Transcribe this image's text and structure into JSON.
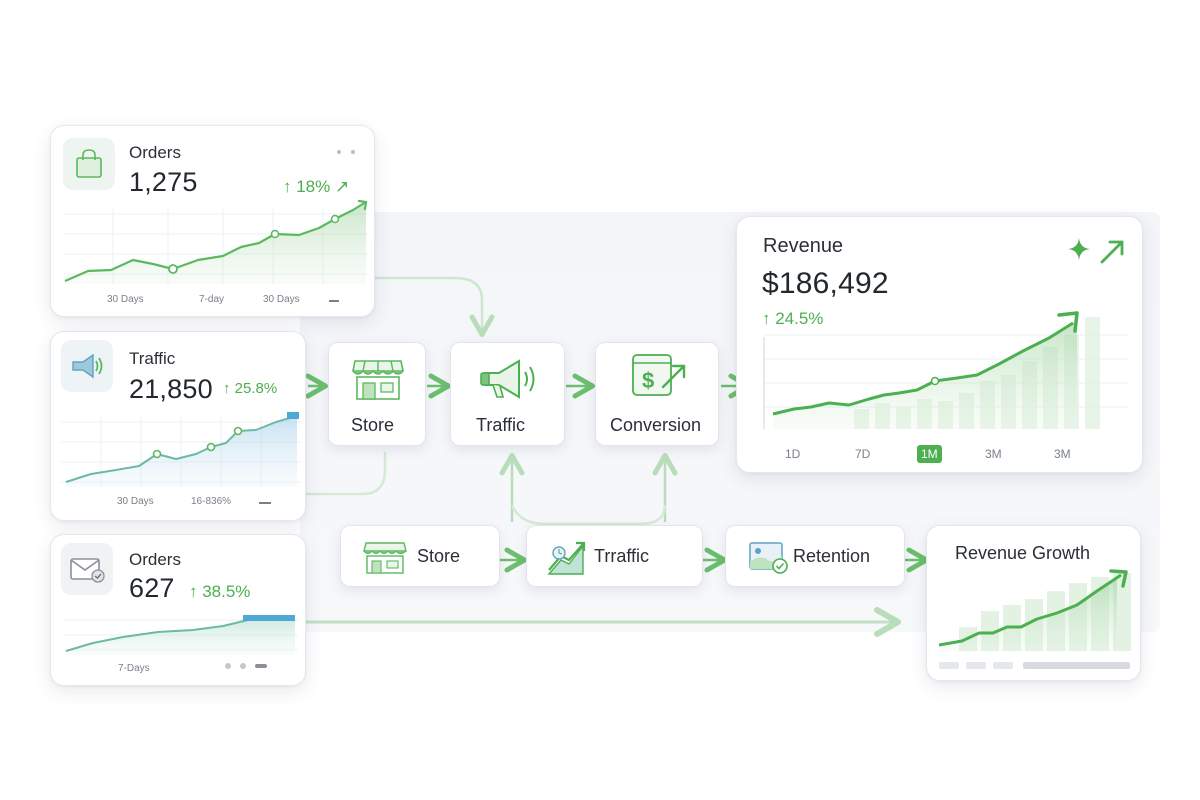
{
  "orders_card": {
    "title": "Orders",
    "value": "1,275",
    "delta": "↑ 18% ↗",
    "axis_labels": [
      "30 Days",
      "7-day",
      "30 Days"
    ]
  },
  "traffic_card": {
    "title": "Traffic",
    "value": "21,850",
    "delta": "↑ 25.8%",
    "axis_labels": [
      "30 Days",
      "16-836%"
    ]
  },
  "orders_card_2": {
    "title": "Orders",
    "value": "627",
    "delta": "↑ 38.5%",
    "axis_labels": [
      "7-Days"
    ]
  },
  "flow_top": {
    "store": "Store",
    "traffic": "Traffic",
    "conversion": "Conversion"
  },
  "flow_bottom": {
    "store": "Store",
    "traffic": "Trraffic",
    "retention": "Retention"
  },
  "revenue_card": {
    "title": "Revenue",
    "value": "$186,492",
    "delta": "↑ 24.5%",
    "ranges": [
      "1D",
      "7D",
      "1M",
      "3M",
      "3M"
    ],
    "active_range": "1M"
  },
  "revenue_growth_card": {
    "title": "Revenue Growth"
  },
  "colors": {
    "accent": "#4caf50",
    "accent_light": "#cfe8cf",
    "traffic_blue": "#9fcbe8",
    "arrow": "#6cbf6e",
    "text": "#2b2f36"
  },
  "icons": {
    "orders": "shopping-bag-icon",
    "traffic": "megaphone-icon",
    "orders_2": "mail-icon",
    "store": "storefront-icon",
    "conversion": "dollar-arrow-icon",
    "trraffic": "growth-chart-icon",
    "retention": "image-check-icon",
    "sparkle": "sparkle-icon"
  }
}
